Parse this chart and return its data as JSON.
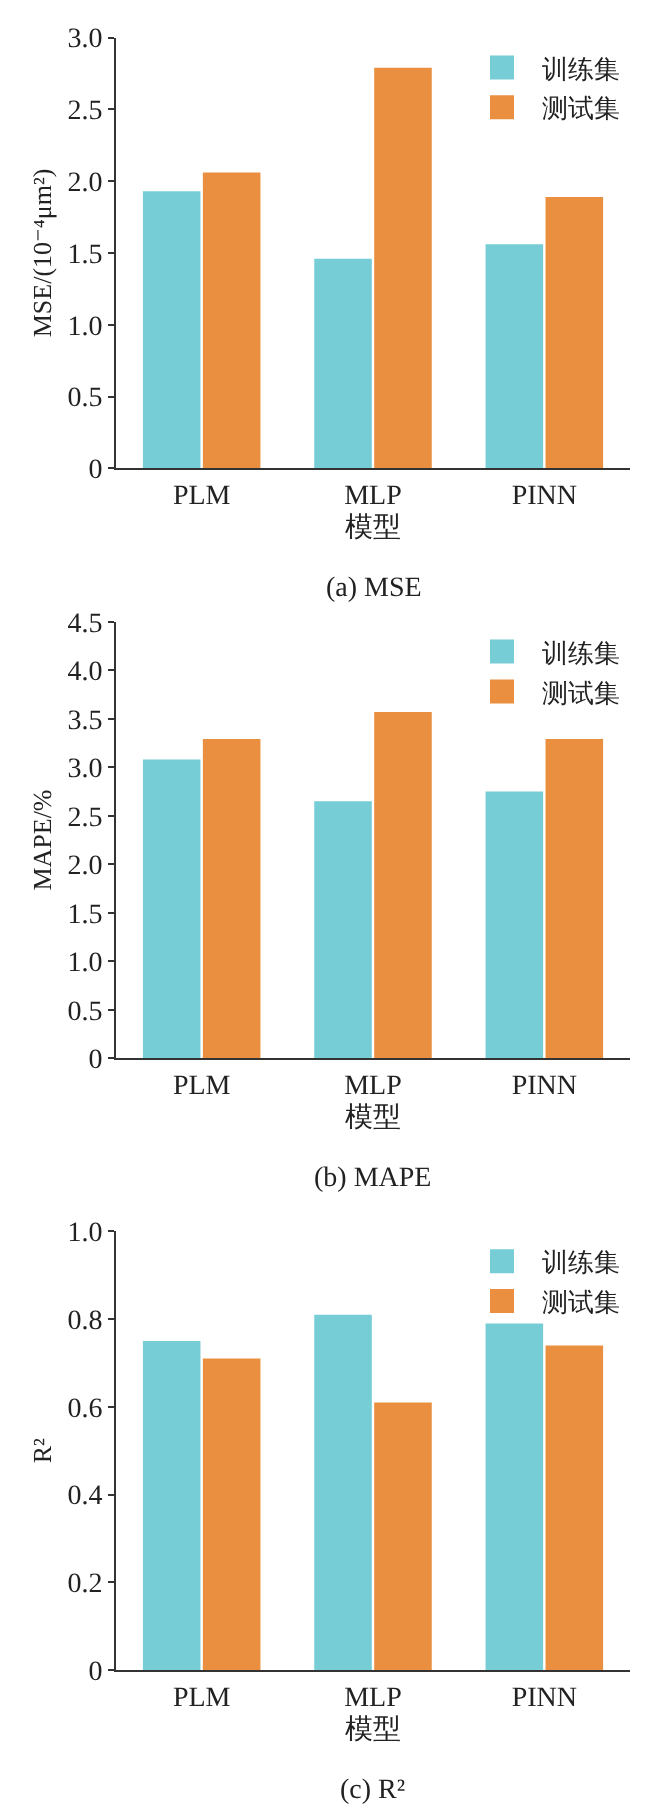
{
  "chart_data": [
    {
      "type": "bar",
      "title": "(a) MSE",
      "xlabel": "模型",
      "ylabel": "MSE/(10⁻⁴μm²)",
      "categories": [
        "PLM",
        "MLP",
        "PINN"
      ],
      "series": [
        {
          "name": "训练集",
          "color": "#76cdd6",
          "values": [
            1.93,
            1.46,
            1.56
          ]
        },
        {
          "name": "测试集",
          "color": "#e98f3f",
          "values": [
            2.06,
            2.79,
            1.89
          ]
        }
      ],
      "ylim": [
        0,
        3.0
      ],
      "yticks": [
        {
          "value": 0,
          "label": "0"
        },
        0.5,
        {
          "value": 1,
          "label": "1.0"
        },
        1.5,
        {
          "value": 2,
          "label": "2.0"
        },
        2.5,
        {
          "value": 3,
          "label": "3.0"
        }
      ],
      "legend": "top right"
    },
    {
      "type": "bar",
      "title": "(b) MAPE",
      "xlabel": "模型",
      "ylabel": "MAPE/%",
      "categories": [
        "PLM",
        "MLP",
        "PINN"
      ],
      "series": [
        {
          "name": "训练集",
          "color": "#76cdd6",
          "values": [
            3.08,
            2.65,
            2.75
          ]
        },
        {
          "name": "测试集",
          "color": "#e98f3f",
          "values": [
            3.29,
            3.57,
            3.29
          ]
        }
      ],
      "ylim": [
        0,
        4.5
      ],
      "yticks": [
        {
          "value": 0,
          "label": "0"
        },
        0.5,
        {
          "value": 1,
          "label": "1.0"
        },
        1.5,
        {
          "value": 2,
          "label": "2.0"
        },
        2.5,
        {
          "value": 3,
          "label": "3.0"
        },
        3.5,
        {
          "value": 4,
          "label": "4.0"
        },
        4.5
      ],
      "legend": "top right"
    },
    {
      "type": "bar",
      "title": "(c) R²",
      "xlabel": "模型",
      "ylabel": "R²",
      "categories": [
        "PLM",
        "MLP",
        "PINN"
      ],
      "series": [
        {
          "name": "训练集",
          "color": "#76cdd6",
          "values": [
            0.75,
            0.81,
            0.79
          ]
        },
        {
          "name": "测试集",
          "color": "#e98f3f",
          "values": [
            0.71,
            0.61,
            0.74
          ]
        }
      ],
      "ylim": [
        0,
        1.0
      ],
      "yticks": [
        {
          "value": 0,
          "label": "0"
        },
        0.2,
        0.4,
        0.6,
        0.8,
        {
          "value": 1,
          "label": "1.0"
        }
      ],
      "legend": "top right"
    }
  ]
}
